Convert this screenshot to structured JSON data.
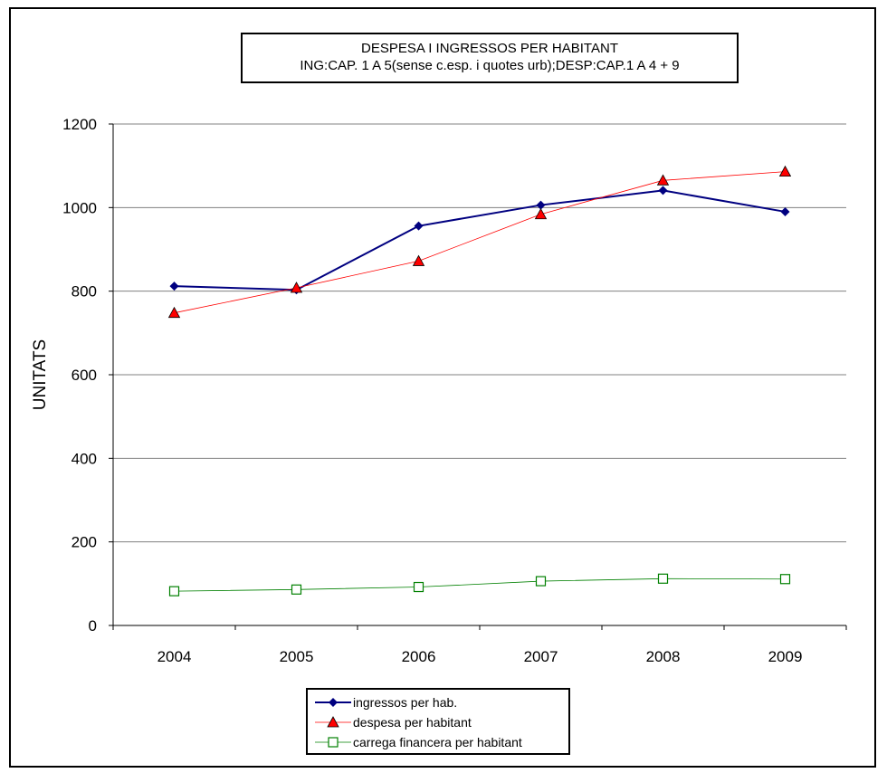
{
  "chart_data": {
    "type": "line",
    "title": "DESPESA I INGRESSOS PER HABITANT",
    "subtitle": "ING:CAP. 1 A 5(sense c.esp. i quotes urb);DESP:CAP.1 A 4 + 9",
    "xlabel": "",
    "ylabel": "UNITATS",
    "categories": [
      "2004",
      "2005",
      "2006",
      "2007",
      "2008",
      "2009"
    ],
    "ylim": [
      0,
      1200
    ],
    "yticks": [
      "0",
      "200",
      "400",
      "600",
      "800",
      "1000",
      "1200"
    ],
    "grid": "horizontal",
    "legend_position": "bottom",
    "series": [
      {
        "name": "ingressos per hab.",
        "color": "#000080",
        "marker": "diamond",
        "values": [
          812,
          803,
          956,
          1006,
          1041,
          990
        ]
      },
      {
        "name": "despesa per habitant",
        "color": "#ff0000",
        "marker": "triangle",
        "values": [
          748,
          808,
          872,
          984,
          1065,
          1086
        ]
      },
      {
        "name": "carrega financera per habitant",
        "color": "#008000",
        "marker": "square-open",
        "values": [
          82,
          86,
          92,
          106,
          112,
          111
        ]
      }
    ]
  }
}
